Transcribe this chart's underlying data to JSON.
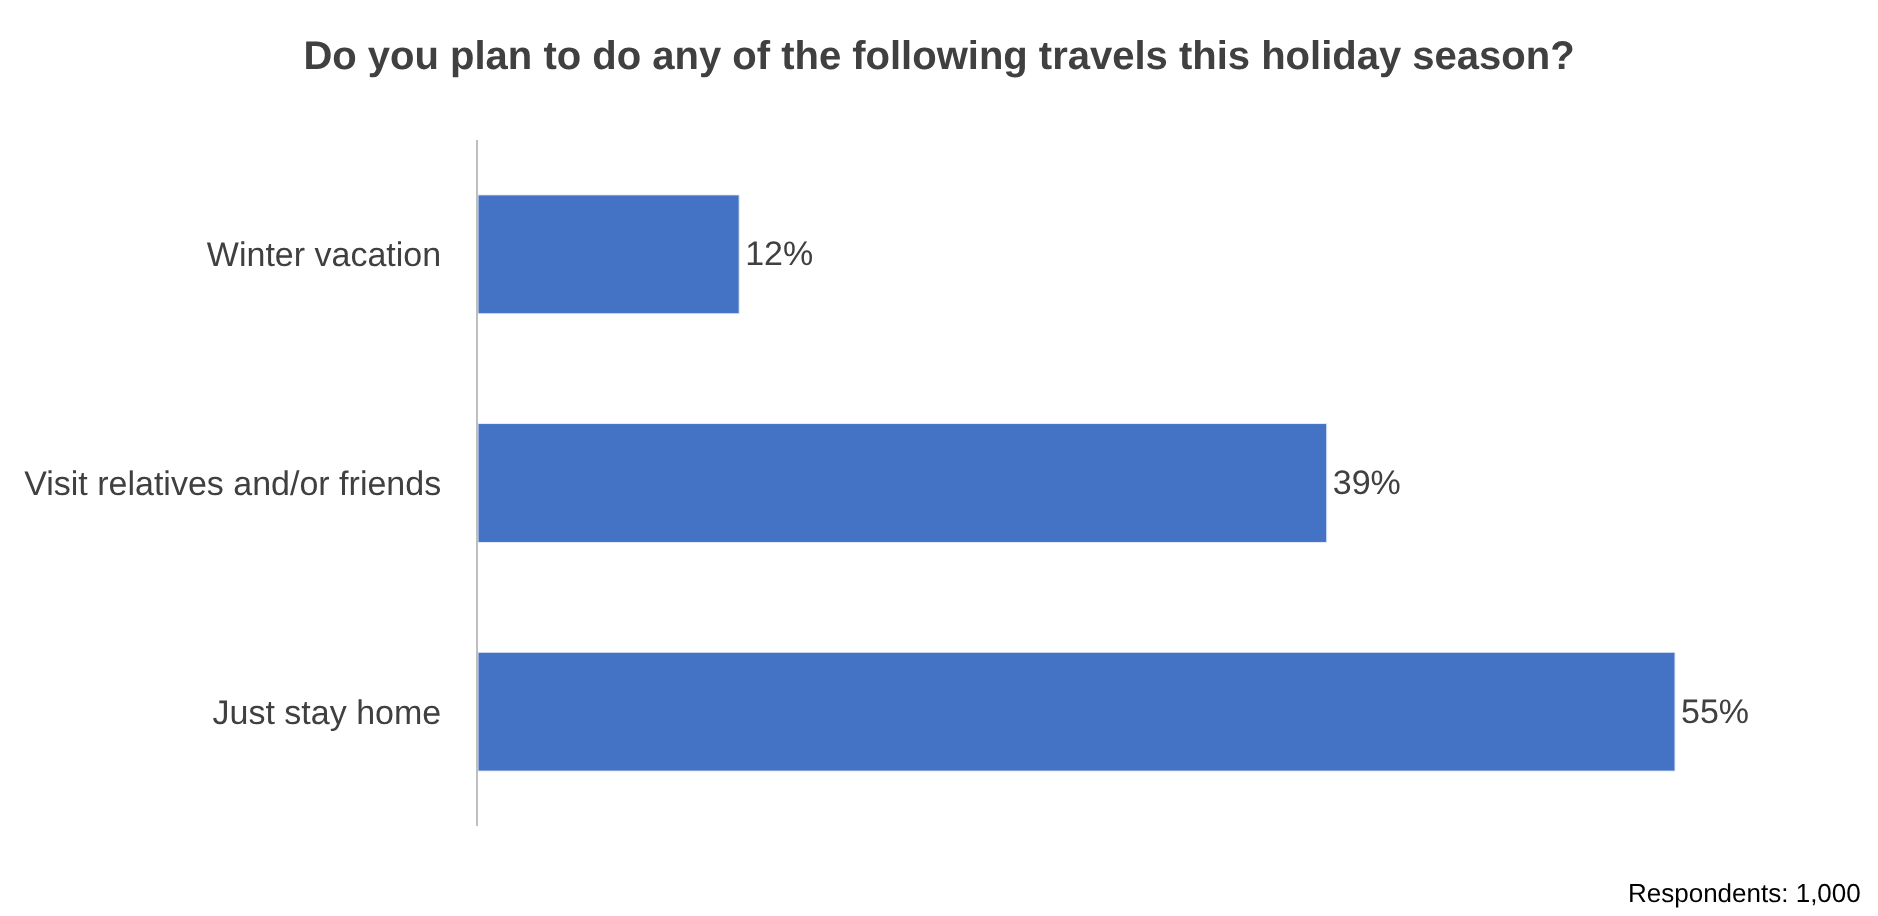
{
  "chart_data": {
    "type": "bar",
    "orientation": "horizontal",
    "title": "Do you plan to do any of the following travels this holiday season?",
    "categories": [
      "Winter vacation",
      "Visit relatives and/or friends",
      "Just stay home"
    ],
    "values": [
      12,
      39,
      55
    ],
    "value_labels": [
      "12%",
      "39%",
      "55%"
    ],
    "color": "#4472c4",
    "tick_labels": "y",
    "legend": false,
    "annotations": [
      "Respondents: 1,000"
    ]
  }
}
